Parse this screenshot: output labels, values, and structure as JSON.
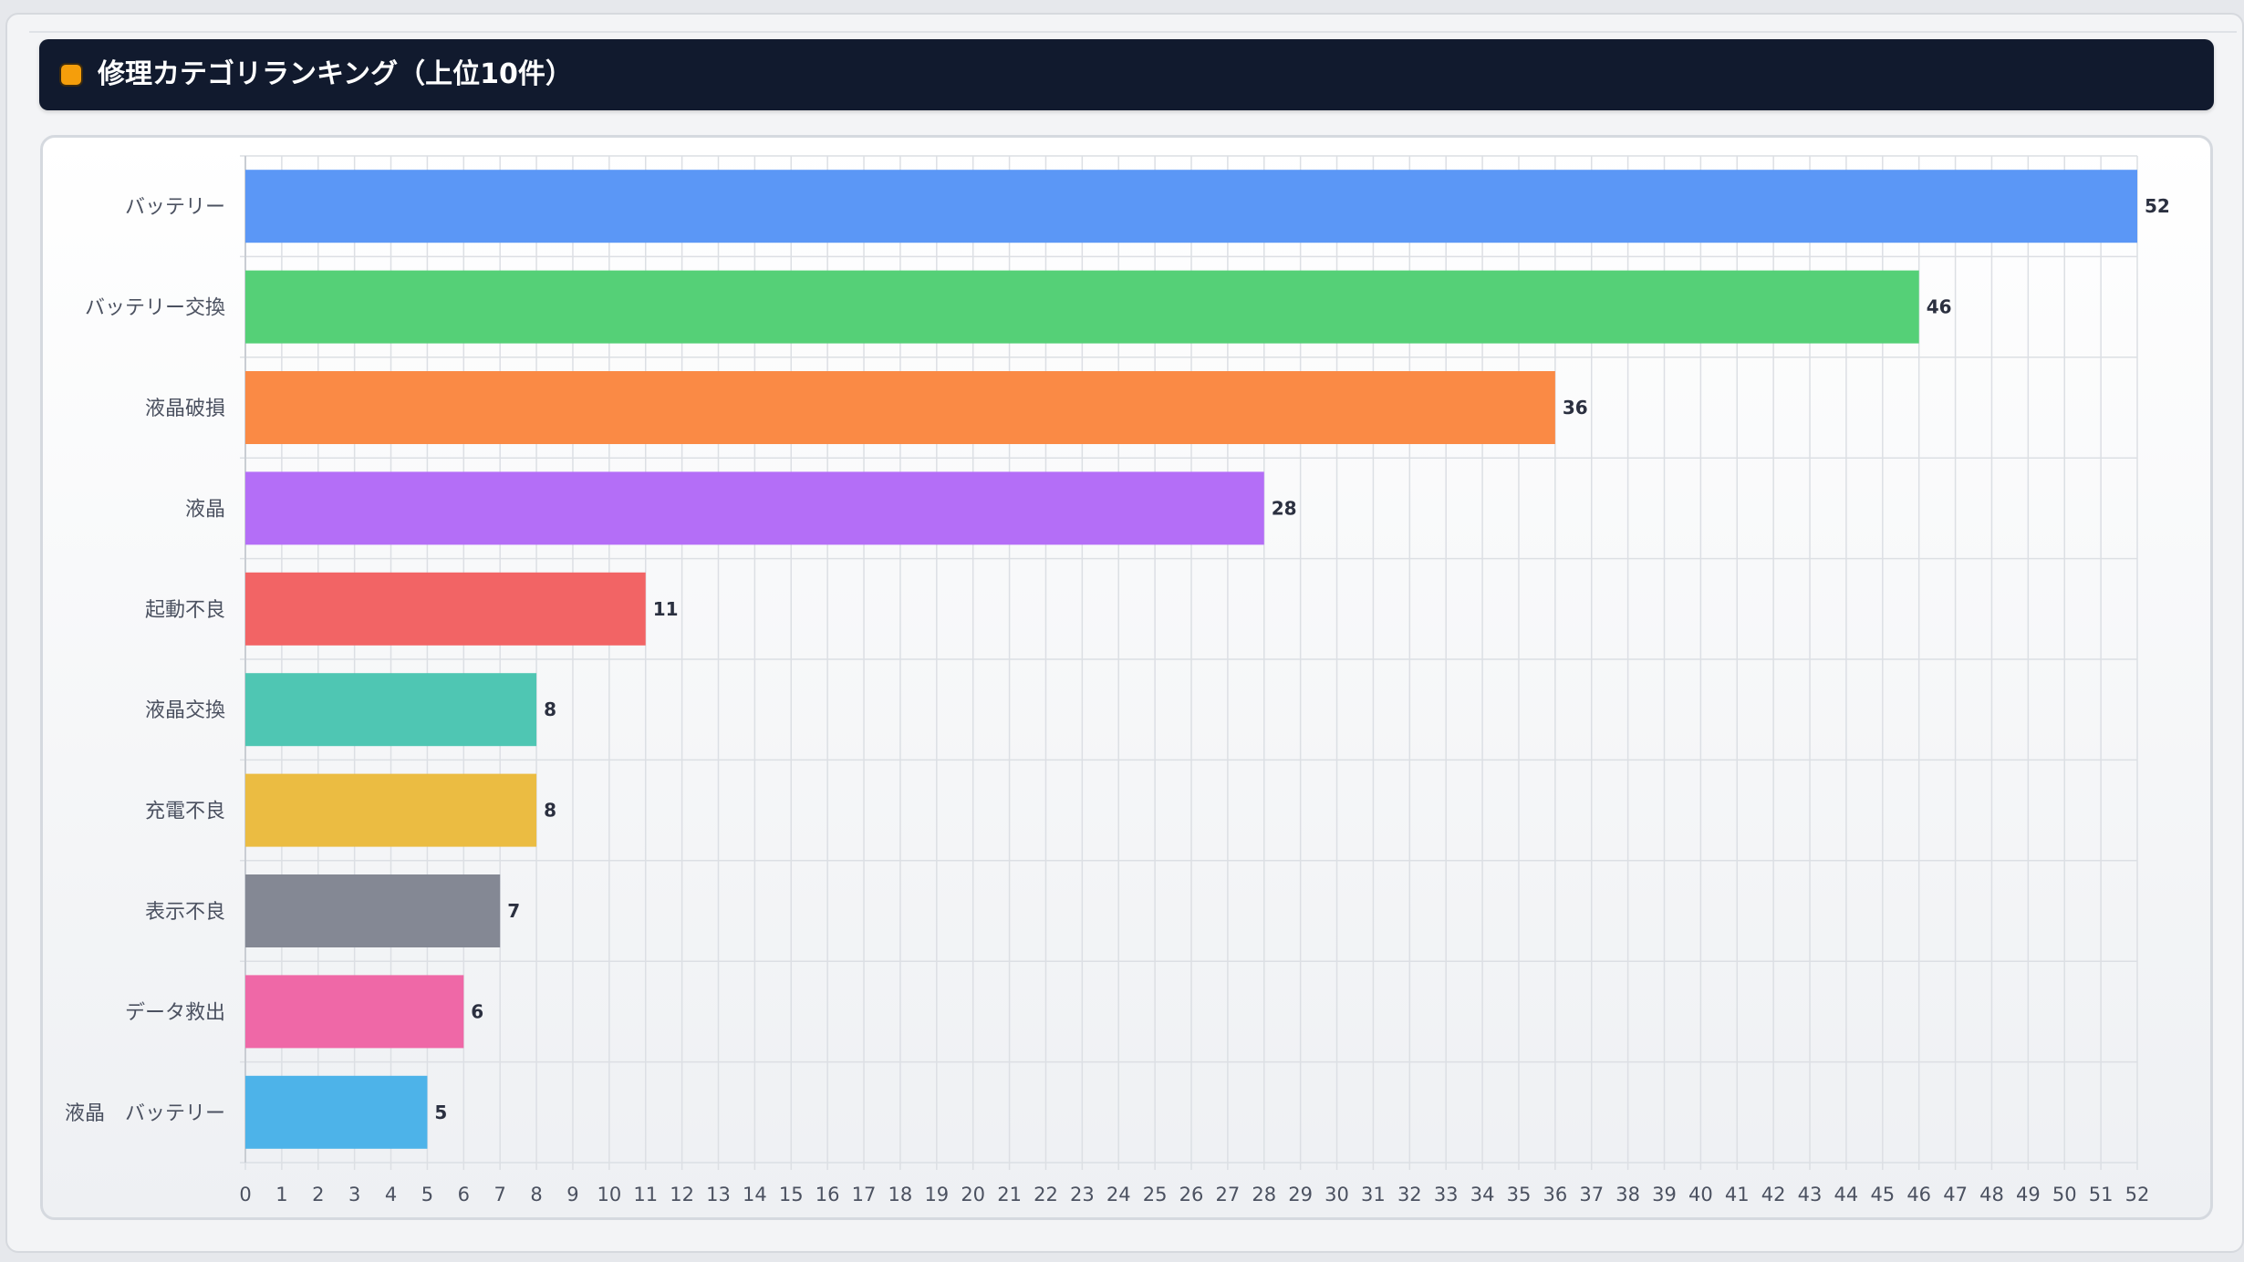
{
  "header": {
    "title": "修理カテゴリランキング（上位10件）",
    "icon": "square-badge-icon",
    "icon_color": "#f59e0b"
  },
  "chart_data": {
    "type": "bar",
    "orientation": "horizontal",
    "title": "修理カテゴリランキング（上位10件）",
    "xlabel": "",
    "ylabel": "",
    "xlim": [
      0,
      52
    ],
    "x_ticks": [
      0,
      1,
      2,
      3,
      4,
      5,
      6,
      7,
      8,
      9,
      10,
      11,
      12,
      13,
      14,
      15,
      16,
      17,
      18,
      19,
      20,
      21,
      22,
      23,
      24,
      25,
      26,
      27,
      28,
      29,
      30,
      31,
      32,
      33,
      34,
      35,
      36,
      37,
      38,
      39,
      40,
      41,
      42,
      43,
      44,
      45,
      46,
      47,
      48,
      49,
      50,
      51,
      52
    ],
    "grid": true,
    "categories": [
      "バッテリー",
      "バッテリー交換",
      "液晶破損",
      "液晶",
      "起動不良",
      "液晶交換",
      "充電不良",
      "表示不良",
      "データ救出",
      "液晶　バッテリー"
    ],
    "values": [
      52,
      46,
      36,
      28,
      11,
      8,
      8,
      7,
      6,
      5
    ],
    "data_labels": [
      "52",
      "46",
      "36",
      "28",
      "11",
      "8",
      "8",
      "7",
      "6",
      "5"
    ],
    "colors": [
      "#5b97f6",
      "#55d077",
      "#fa8a45",
      "#b46ef7",
      "#f26465",
      "#4fc6b3",
      "#ebbc42",
      "#848894",
      "#ef68a7",
      "#4db3e9"
    ]
  }
}
